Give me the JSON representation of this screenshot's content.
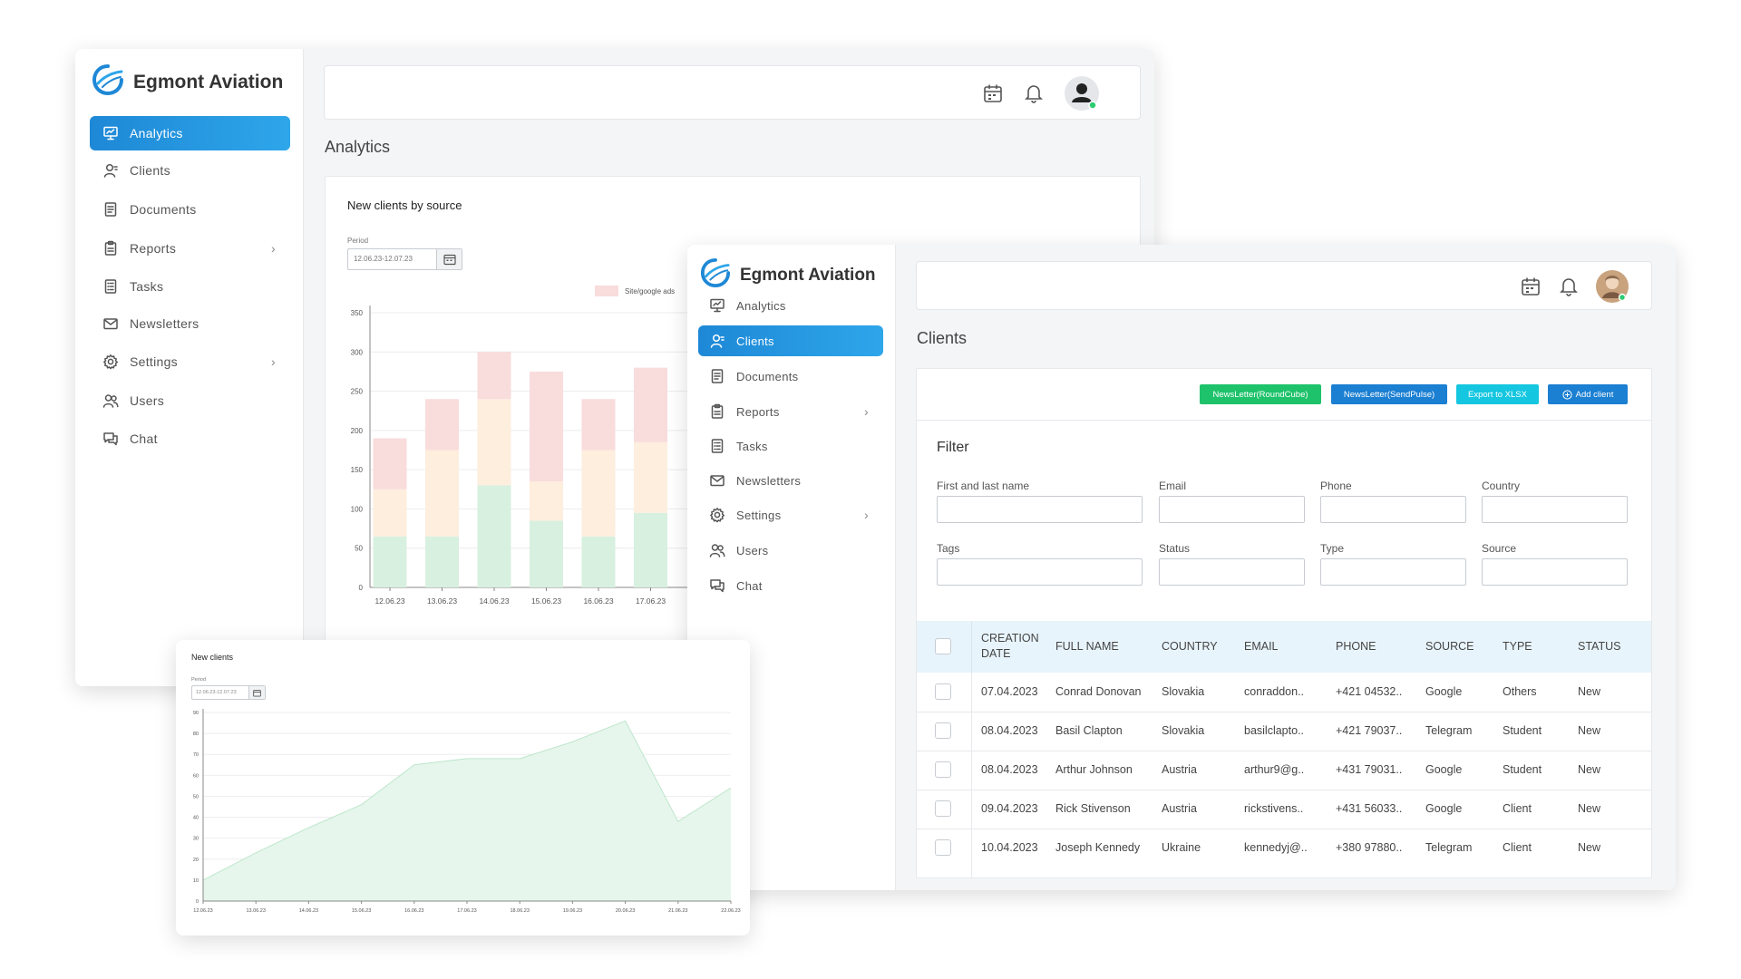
{
  "brand": {
    "name": "Egmont Aviation"
  },
  "nav": [
    {
      "label": "Analytics",
      "icon": "presentation-icon"
    },
    {
      "label": "Clients",
      "icon": "user-icon"
    },
    {
      "label": "Documents",
      "icon": "document-icon"
    },
    {
      "label": "Reports",
      "icon": "clipboard-icon",
      "chevron": true
    },
    {
      "label": "Tasks",
      "icon": "tasks-icon"
    },
    {
      "label": "Newsletters",
      "icon": "mail-icon"
    },
    {
      "label": "Settings",
      "icon": "gear-icon",
      "chevron": true
    },
    {
      "label": "Users",
      "icon": "users-icon"
    },
    {
      "label": "Chat",
      "icon": "chat-icon"
    }
  ],
  "analytics": {
    "title": "Analytics",
    "card_title": "New clients by source",
    "period_label": "Period",
    "period_value": "12.06.23-12.07.23"
  },
  "new_clients": {
    "title": "New clients",
    "period_label": "Period",
    "period_value": "12.06.23-12.07.23"
  },
  "clients": {
    "title": "Clients",
    "buttons": {
      "roundcube": "NewsLetter(RoundCube)",
      "sendpulse": "NewsLetter(SendPulse)",
      "export": "Export to XLSX",
      "add": "Add client"
    },
    "filter": {
      "title": "Filter",
      "fields": [
        "First and last name",
        "Email",
        "Phone",
        "Country",
        "Tags",
        "Status",
        "Type",
        "Source"
      ]
    },
    "columns": [
      "CREATION DATE",
      "FULL NAME",
      "COUNTRY",
      "EMAIL",
      "PHONE",
      "SOURCE",
      "TYPE",
      "STATUS"
    ],
    "rows": [
      [
        "07.04.2023",
        "Conrad Donovan",
        "Slovakia",
        "conraddon..",
        "+421 04532..",
        "Google",
        "Others",
        "New"
      ],
      [
        "08.04.2023",
        "Basil Clapton",
        "Slovakia",
        "basilclapto..",
        "+421 79037..",
        "Telegram",
        "Student",
        "New"
      ],
      [
        "08.04.2023",
        "Arthur Johnson",
        "Austria",
        "arthur9@g..",
        "+431 79031..",
        "Google",
        "Student",
        "New"
      ],
      [
        "09.04.2023",
        "Rick Stivenson",
        "Austria",
        "rickstivens..",
        "+431 56033..",
        "Google",
        "Client",
        "New"
      ],
      [
        "10.04.2023",
        "Joseph Kennedy",
        "Ukraine",
        "kennedyj@..",
        "+380 97880..",
        "Telegram",
        "Client",
        "New"
      ]
    ]
  },
  "colors": {
    "accent": "#1e88d6",
    "green_button": "#1ec26a",
    "blue_button": "#1b7fd2",
    "cyan_button": "#14c6e0",
    "bar_green": "#d8f0e0",
    "bar_peach": "#fdeede",
    "bar_pink": "#f9dcdc",
    "area_fill": "#e6f6ec"
  },
  "chart_data": [
    {
      "type": "bar",
      "title": "New clients by source",
      "stacked": true,
      "categories": [
        "12.06.23",
        "13.06.23",
        "14.06.23",
        "15.06.23",
        "16.06.23",
        "17.06.23"
      ],
      "series": [
        {
          "values": [
            65,
            65,
            130,
            85,
            65,
            95
          ]
        },
        {
          "values": [
            60,
            110,
            110,
            50,
            110,
            90
          ]
        },
        {
          "name": "Site/google ads",
          "values": [
            65,
            65,
            60,
            140,
            65,
            95
          ]
        }
      ],
      "ylim": [
        0,
        350
      ],
      "yticks": [
        0,
        50,
        100,
        150,
        200,
        250,
        300,
        350
      ],
      "grid": true,
      "legend": "top-right"
    },
    {
      "type": "area",
      "title": "New clients",
      "x": [
        "12.06.23",
        "13.06.23",
        "14.06.23",
        "15.06.23",
        "16.06.23",
        "17.06.23",
        "18.06.23",
        "19.06.23",
        "20.06.23",
        "21.06.23",
        "22.06.23"
      ],
      "values": [
        10,
        23,
        35,
        46,
        65,
        68,
        68,
        76,
        86,
        38,
        54
      ],
      "ylim": [
        0,
        90
      ],
      "yticks": [
        0,
        10,
        20,
        30,
        40,
        50,
        60,
        70,
        80,
        90
      ],
      "grid": true
    }
  ]
}
